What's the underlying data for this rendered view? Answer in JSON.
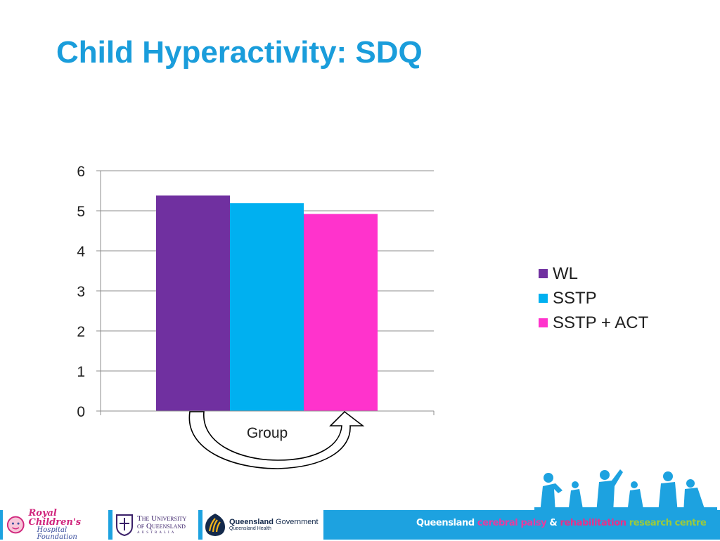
{
  "slide": {
    "title": "Child Hyperactivity: SDQ"
  },
  "chart_data": {
    "type": "bar",
    "title": "",
    "xlabel": "Group",
    "ylabel": "",
    "ylim": [
      0,
      6
    ],
    "yticks": [
      0,
      1,
      2,
      3,
      4,
      5,
      6
    ],
    "grid": true,
    "legend_position": "right",
    "categories": [
      ""
    ],
    "series": [
      {
        "name": "WL",
        "values": [
          5.38
        ],
        "color": "#7030a0"
      },
      {
        "name": "SSTP",
        "values": [
          5.19
        ],
        "color": "#00b0f0"
      },
      {
        "name": "SSTP + ACT",
        "values": [
          4.92
        ],
        "color": "#ff33cc"
      }
    ],
    "annotation": "curved-arrow"
  },
  "footer": {
    "logos": {
      "rch": {
        "line1": "Royal Children's",
        "line2": "Hospital Foundation"
      },
      "uq": {
        "line1": "The University",
        "line2": "of Queensland",
        "line3": "AUSTRALIA"
      },
      "qg": {
        "line1a": "Queensland",
        "line1b": " Government",
        "line2": "Queensland Health"
      }
    },
    "tagline": {
      "part1": "Queensland ",
      "part2": "cerebral palsy",
      "part3": " & ",
      "part4": "rehabilitation",
      "part5": " research centre"
    }
  },
  "colors": {
    "accent": "#1a9ddb",
    "footer_bg": "#1da2e0"
  },
  "icons": [
    "family-silhouettes-icon",
    "crest-icon",
    "rch-face-icon",
    "qg-emblem-icon"
  ]
}
